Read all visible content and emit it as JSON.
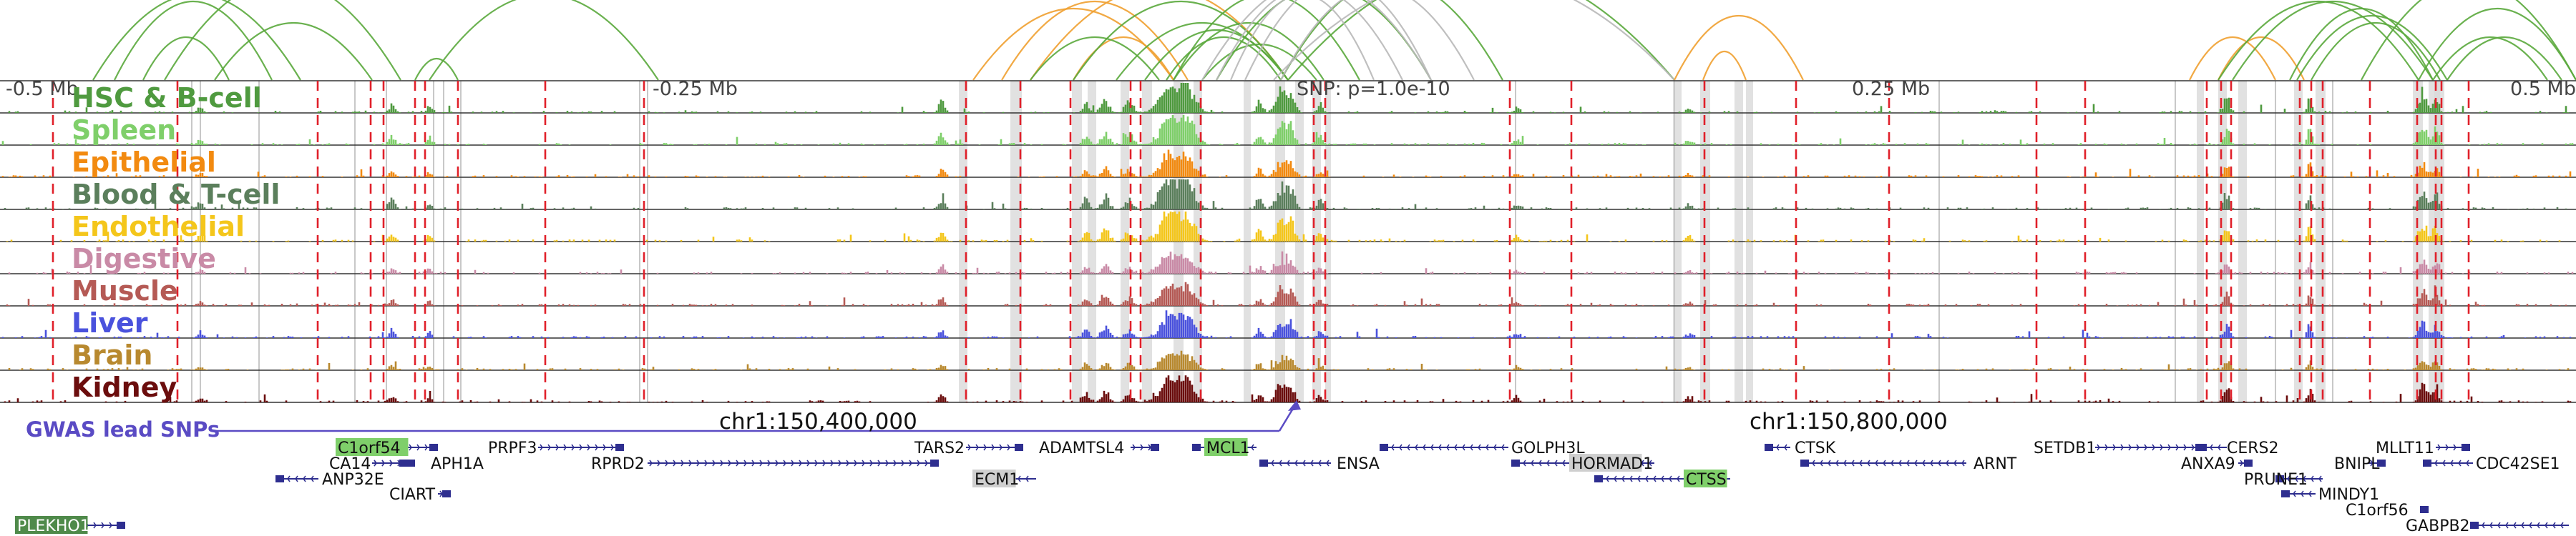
{
  "genome_browser": {
    "axis": {
      "left_label": "-0.5 Mb",
      "left_mid_label": "-0.25 Mb",
      "snp_label": "SNP: p=1.0e-10",
      "right_mid_label": "0.25 Mb",
      "right_label": "0.5 Mb"
    },
    "tracks": [
      {
        "label": "HSC & B-cell",
        "color": "#4f9a3f"
      },
      {
        "label": "Spleen",
        "color": "#7fcf6a"
      },
      {
        "label": "Epithelial",
        "color": "#f28a10"
      },
      {
        "label": "Blood & T-cell",
        "color": "#5b7f5c"
      },
      {
        "label": "Endothelial",
        "color": "#f4c61b"
      },
      {
        "label": "Digestive",
        "color": "#c98aa6"
      },
      {
        "label": "Muscle",
        "color": "#b55a55"
      },
      {
        "label": "Liver",
        "color": "#4a52dd"
      },
      {
        "label": "Brain",
        "color": "#b8892f"
      },
      {
        "label": "Kidney",
        "color": "#6b0d0d"
      }
    ],
    "gwas_label": "GWAS lead SNPs",
    "gwas_color": "#5a4bc4",
    "coordinates": {
      "left": "chr1:150,400,000",
      "right": "chr1:150,800,000"
    },
    "genes": [
      {
        "name": "C1orf54",
        "highlight": "green"
      },
      {
        "name": "CA14",
        "highlight": "none"
      },
      {
        "name": "APH1A",
        "highlight": "none"
      },
      {
        "name": "ANP32E",
        "highlight": "none"
      },
      {
        "name": "CIART",
        "highlight": "none"
      },
      {
        "name": "PLEKHO1",
        "highlight": "darkgreen"
      },
      {
        "name": "PRPF3",
        "highlight": "none"
      },
      {
        "name": "RPRD2",
        "highlight": "none"
      },
      {
        "name": "TARS2",
        "highlight": "none"
      },
      {
        "name": "ECM1",
        "highlight": "grey"
      },
      {
        "name": "ADAMTSL4",
        "highlight": "none"
      },
      {
        "name": "MCL1",
        "highlight": "green"
      },
      {
        "name": "ENSA",
        "highlight": "none"
      },
      {
        "name": "GOLPH3L",
        "highlight": "none"
      },
      {
        "name": "HORMAD1",
        "highlight": "grey"
      },
      {
        "name": "CTSS",
        "highlight": "green"
      },
      {
        "name": "CTSK",
        "highlight": "none"
      },
      {
        "name": "ARNT",
        "highlight": "none"
      },
      {
        "name": "SETDB1",
        "highlight": "none"
      },
      {
        "name": "CERS2",
        "highlight": "none"
      },
      {
        "name": "ANXA9",
        "highlight": "none"
      },
      {
        "name": "PRUNE1",
        "highlight": "none"
      },
      {
        "name": "BNIPL",
        "highlight": "none"
      },
      {
        "name": "MINDY1",
        "highlight": "none"
      },
      {
        "name": "C1orf56",
        "highlight": "none"
      },
      {
        "name": "MLLT11",
        "highlight": "none"
      },
      {
        "name": "CDC42SE1",
        "highlight": "none"
      },
      {
        "name": "GABPB2",
        "highlight": "none"
      }
    ],
    "colors": {
      "gene_model": "#2e2e8f",
      "red_dash": "#e0202a",
      "grey_band": "#d9d9d9",
      "highlight_green": "#7fcf6a",
      "highlight_darkgreen": "#4f8a4a",
      "highlight_grey": "#cfcfcf",
      "arc_green": "#5aa83c",
      "arc_orange": "#f0a030",
      "arc_grey": "#b8b8b8"
    }
  }
}
